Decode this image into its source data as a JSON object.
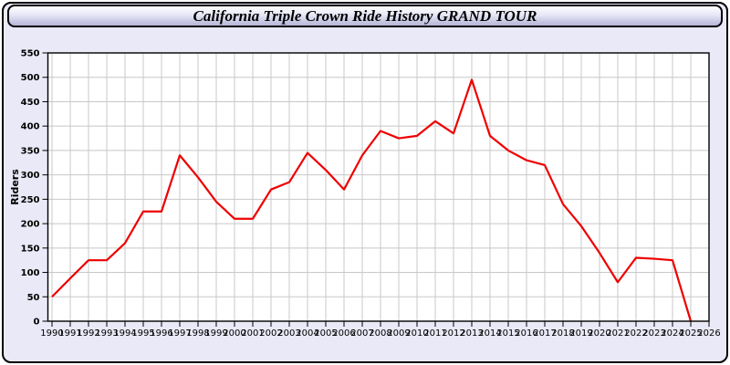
{
  "page": {
    "title": "California Triple Crown Ride History GRAND TOUR"
  },
  "colors": {
    "page_background": "#e9e9f8",
    "outer_border": "#000000",
    "header_gradient_top": "#ffffff",
    "header_gradient_bottom": "#b6b6d8",
    "plot_background": "#ffffff",
    "plot_border": "#000000",
    "gridline": "#c8c8c8",
    "line": "#ee0000",
    "tick_text": "#000000"
  },
  "chart_data": {
    "type": "line",
    "title": "California Triple Crown Ride History GRAND TOUR",
    "xlabel": "",
    "ylabel": "Riders",
    "ylim": [
      0,
      550
    ],
    "ytick_step": 50,
    "grid": true,
    "legend": false,
    "x_axis_years": [
      1990,
      1991,
      1992,
      1993,
      1994,
      1995,
      1996,
      1997,
      1998,
      1999,
      2000,
      2001,
      2002,
      2003,
      2004,
      2005,
      2006,
      2007,
      2008,
      2009,
      2010,
      2011,
      2012,
      2013,
      2014,
      2015,
      2016,
      2017,
      2018,
      2019,
      2020,
      2021,
      2022,
      2023,
      2024,
      2025,
      2026
    ],
    "series": [
      {
        "name": "Riders",
        "color": "#ee0000",
        "x": [
          1990,
          1991,
          1992,
          1993,
          1994,
          1995,
          1996,
          1997,
          1998,
          1999,
          2000,
          2001,
          2002,
          2003,
          2004,
          2005,
          2006,
          2007,
          2008,
          2009,
          2010,
          2011,
          2012,
          2013,
          2014,
          2015,
          2016,
          2017,
          2018,
          2019,
          2020,
          2021,
          2022,
          2023,
          2024,
          2025
        ],
        "values": [
          50,
          88,
          125,
          125,
          160,
          225,
          225,
          340,
          295,
          245,
          210,
          210,
          270,
          285,
          345,
          310,
          270,
          340,
          390,
          375,
          380,
          410,
          385,
          495,
          380,
          350,
          330,
          320,
          240,
          195,
          140,
          80,
          130,
          128,
          125,
          0
        ]
      }
    ]
  }
}
